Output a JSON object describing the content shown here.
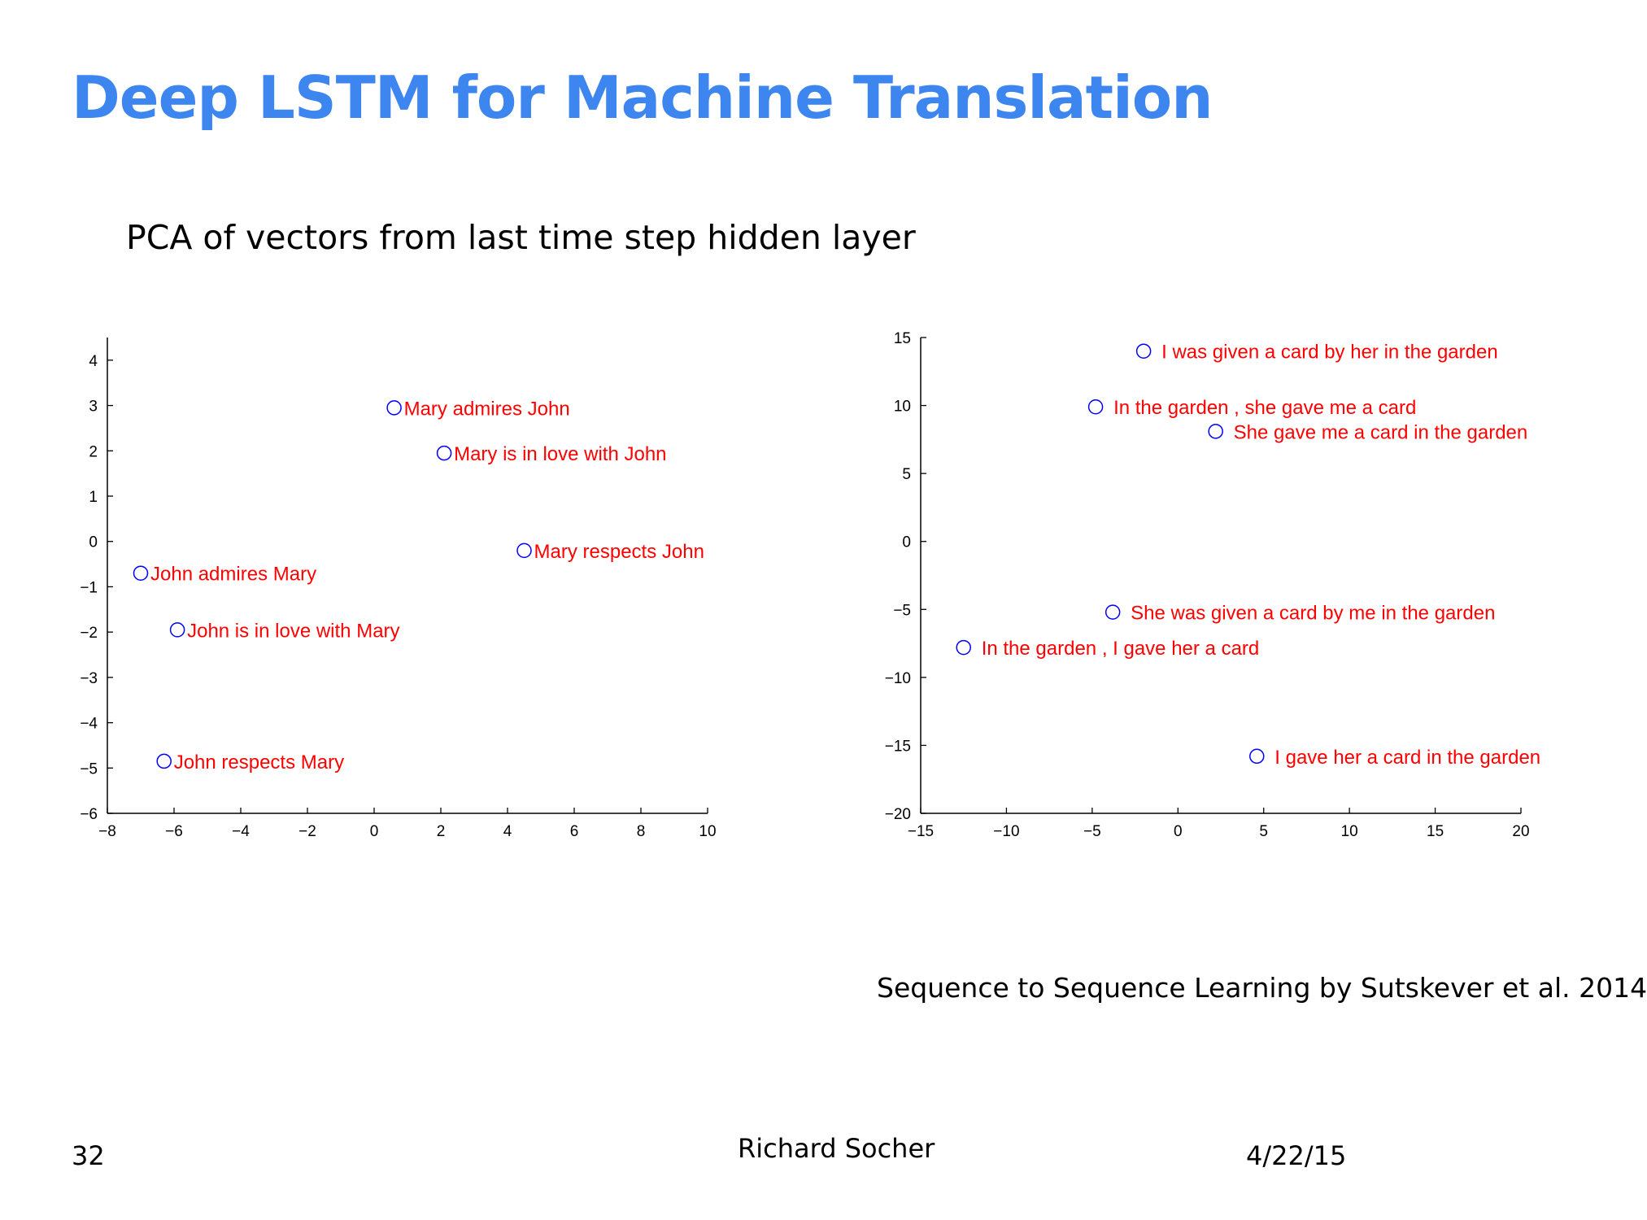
{
  "slide": {
    "title": "Deep LSTM for Machine Translation",
    "subtitle": "PCA of vectors from last time step hidden layer",
    "citation": "Sequence to Sequence Learning by Sutskever et al. 2014",
    "page_number": "32",
    "author": "Richard Socher",
    "date": "4/22/15"
  },
  "colors": {
    "title": "#3d86f0",
    "marker": "#0000ff",
    "label": "#ff0000",
    "axis": "#000000"
  },
  "chart_data": [
    {
      "type": "scatter",
      "title": "",
      "xlabel": "",
      "ylabel": "",
      "xlim": [
        -8,
        10
      ],
      "ylim": [
        -6,
        4.5
      ],
      "xticks": [
        -8,
        -6,
        -4,
        -2,
        0,
        2,
        4,
        6,
        8,
        10
      ],
      "yticks": [
        -6,
        -5,
        -4,
        -3,
        -2,
        -1,
        0,
        1,
        2,
        3,
        4
      ],
      "grid": false,
      "points": [
        {
          "x": 0.6,
          "y": 2.95,
          "label": "Mary admires John"
        },
        {
          "x": 2.1,
          "y": 1.95,
          "label": "Mary is in love with John"
        },
        {
          "x": 4.5,
          "y": -0.2,
          "label": "Mary respects John"
        },
        {
          "x": -7.0,
          "y": -0.7,
          "label": "John admires Mary"
        },
        {
          "x": -5.9,
          "y": -1.95,
          "label": "John is in love with Mary"
        },
        {
          "x": -6.3,
          "y": -4.85,
          "label": "John respects Mary"
        }
      ]
    },
    {
      "type": "scatter",
      "title": "",
      "xlabel": "",
      "ylabel": "",
      "xlim": [
        -15,
        20
      ],
      "ylim": [
        -20,
        15
      ],
      "xticks": [
        -15,
        -10,
        -5,
        0,
        5,
        10,
        15,
        20
      ],
      "yticks": [
        -20,
        -15,
        -10,
        -5,
        0,
        5,
        10,
        15
      ],
      "grid": false,
      "points": [
        {
          "x": -2.0,
          "y": 14.0,
          "label": "I was given a card by her in the garden"
        },
        {
          "x": -4.8,
          "y": 9.9,
          "label": "In the garden , she gave me a card"
        },
        {
          "x": 2.2,
          "y": 8.1,
          "label": "She gave me a card in the garden"
        },
        {
          "x": -3.8,
          "y": -5.2,
          "label": "She was given a card by me in the garden"
        },
        {
          "x": -12.5,
          "y": -7.8,
          "label": "In the garden , I gave her a card"
        },
        {
          "x": 4.6,
          "y": -15.8,
          "label": "I gave her a card in the garden"
        }
      ]
    }
  ]
}
